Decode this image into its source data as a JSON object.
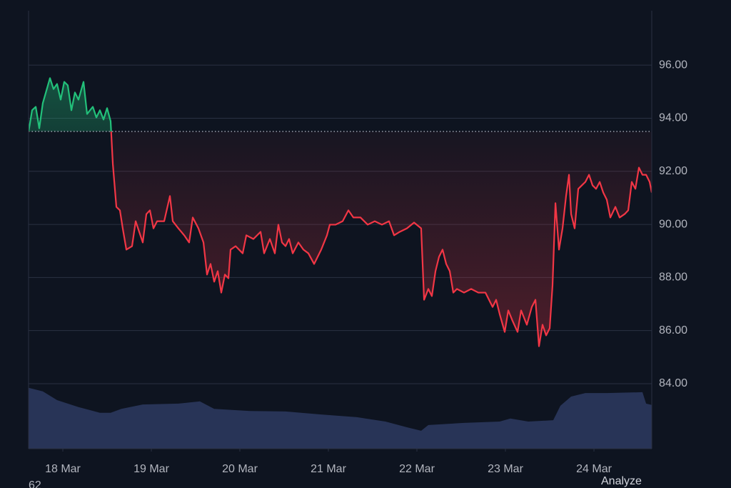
{
  "chart_data": {
    "type": "line",
    "x": [
      17.613,
      17.653,
      17.694,
      17.734,
      17.774,
      17.855,
      17.895,
      17.935,
      17.976,
      18.016,
      18.056,
      18.097,
      18.137,
      18.177,
      18.234,
      18.274,
      18.339,
      18.379,
      18.419,
      18.46,
      18.5,
      18.54,
      18.565,
      18.605,
      18.645,
      18.677,
      18.718,
      18.782,
      18.823,
      18.863,
      18.903,
      18.944,
      18.984,
      19.024,
      19.065,
      19.145,
      19.21,
      19.242,
      19.306,
      19.371,
      19.427,
      19.468,
      19.532,
      19.589,
      19.629,
      19.669,
      19.71,
      19.75,
      19.79,
      19.831,
      19.871,
      19.895,
      19.952,
      20.032,
      20.073,
      20.153,
      20.234,
      20.274,
      20.339,
      20.395,
      20.435,
      20.476,
      20.516,
      20.556,
      20.597,
      20.661,
      20.718,
      20.774,
      20.839,
      20.879,
      20.919,
      20.984,
      21.016,
      21.081,
      21.161,
      21.226,
      21.282,
      21.363,
      21.444,
      21.524,
      21.605,
      21.685,
      21.742,
      21.806,
      21.887,
      21.968,
      22.048,
      22.081,
      22.129,
      22.169,
      22.21,
      22.25,
      22.29,
      22.331,
      22.371,
      22.411,
      22.452,
      22.532,
      22.613,
      22.694,
      22.774,
      22.855,
      22.895,
      22.935,
      22.992,
      23.032,
      23.081,
      23.137,
      23.177,
      23.242,
      23.298,
      23.339,
      23.379,
      23.419,
      23.46,
      23.5,
      23.532,
      23.565,
      23.605,
      23.645,
      23.685,
      23.718,
      23.742,
      23.782,
      23.823,
      23.863,
      23.903,
      23.944,
      23.984,
      24.024,
      24.065,
      24.105,
      24.145,
      24.185,
      24.242,
      24.29,
      24.347,
      24.387,
      24.427,
      24.468,
      24.508,
      24.548,
      24.589,
      24.629,
      24.653
    ],
    "series": [
      {
        "color": "#f23645",
        "up_color": "#22c07a",
        "values": [
          93.49,
          94.3,
          94.43,
          93.62,
          94.57,
          95.51,
          95.1,
          95.29,
          94.7,
          95.37,
          95.24,
          94.3,
          94.97,
          94.7,
          95.37,
          94.16,
          94.43,
          94.03,
          94.3,
          93.95,
          94.38,
          93.89,
          92.28,
          90.66,
          90.53,
          89.85,
          89.05,
          89.18,
          90.12,
          89.72,
          89.32,
          90.39,
          90.53,
          89.85,
          90.12,
          90.12,
          91.07,
          90.12,
          89.85,
          89.59,
          89.32,
          90.26,
          89.85,
          89.32,
          88.11,
          88.51,
          87.84,
          88.24,
          87.43,
          88.11,
          87.97,
          89.05,
          89.18,
          88.91,
          89.59,
          89.45,
          89.72,
          88.91,
          89.45,
          88.91,
          89.99,
          89.32,
          89.18,
          89.45,
          88.91,
          89.32,
          89.05,
          88.91,
          88.51,
          88.78,
          89.05,
          89.59,
          89.99,
          89.99,
          90.12,
          90.53,
          90.26,
          90.26,
          89.99,
          90.12,
          89.99,
          90.12,
          89.59,
          89.72,
          89.85,
          90.07,
          89.85,
          87.16,
          87.57,
          87.3,
          88.24,
          88.78,
          89.05,
          88.51,
          88.24,
          87.43,
          87.57,
          87.43,
          87.57,
          87.43,
          87.43,
          86.89,
          87.16,
          86.62,
          85.95,
          86.76,
          86.36,
          85.95,
          86.76,
          86.22,
          86.89,
          87.16,
          85.41,
          86.22,
          85.82,
          86.09,
          87.7,
          90.8,
          89.05,
          89.85,
          91.07,
          91.87,
          90.39,
          89.85,
          91.34,
          91.47,
          91.6,
          91.87,
          91.47,
          91.34,
          91.6,
          91.2,
          90.93,
          90.26,
          90.66,
          90.26,
          90.39,
          90.53,
          91.6,
          91.34,
          92.14,
          91.87,
          91.87,
          91.6,
          91.2
        ]
      }
    ],
    "baseline": 93.5,
    "volume": {
      "color": "#283457",
      "x": [
        17.613,
        17.774,
        17.935,
        18.177,
        18.419,
        18.54,
        18.661,
        18.903,
        19.306,
        19.548,
        19.71,
        20.113,
        20.516,
        20.919,
        21.323,
        21.645,
        21.887,
        22.048,
        22.129,
        22.532,
        22.935,
        23.056,
        23.258,
        23.54,
        23.621,
        23.742,
        23.903,
        24.145,
        24.548,
        24.589,
        24.653
      ],
      "values": [
        13.9,
        13.1,
        11.1,
        9.5,
        8.2,
        8.2,
        9.1,
        10.1,
        10.3,
        10.8,
        9.1,
        8.6,
        8.5,
        7.8,
        7.2,
        6.2,
        4.9,
        4.1,
        5.4,
        5.9,
        6.2,
        6.9,
        6.2,
        6.5,
        9.8,
        11.9,
        12.7,
        12.7,
        12.9,
        10.3,
        10.0
      ]
    },
    "xlim": [
      17.613,
      24.653
    ],
    "xticks": [
      {
        "value": 18,
        "label": "18 Mar"
      },
      {
        "value": 19,
        "label": "19 Mar"
      },
      {
        "value": 20,
        "label": "20 Mar"
      },
      {
        "value": 21,
        "label": "21 Mar"
      },
      {
        "value": 22,
        "label": "22 Mar"
      },
      {
        "value": 23,
        "label": "23 Mar"
      },
      {
        "value": 24,
        "label": "24 Mar"
      }
    ],
    "ylim": [
      81.55,
      98.05
    ],
    "yticks": [
      {
        "value": 84,
        "label": "84.00"
      },
      {
        "value": 86,
        "label": "86.00"
      },
      {
        "value": 88,
        "label": "88.00"
      },
      {
        "value": 90,
        "label": "90.00"
      },
      {
        "value": 92,
        "label": "92.00"
      },
      {
        "value": 94,
        "label": "94.00"
      },
      {
        "value": 96,
        "label": "96.00"
      }
    ],
    "y2lim": [
      0,
      100
    ],
    "grid": true,
    "annotations": [
      "62",
      "Analyze"
    ]
  }
}
